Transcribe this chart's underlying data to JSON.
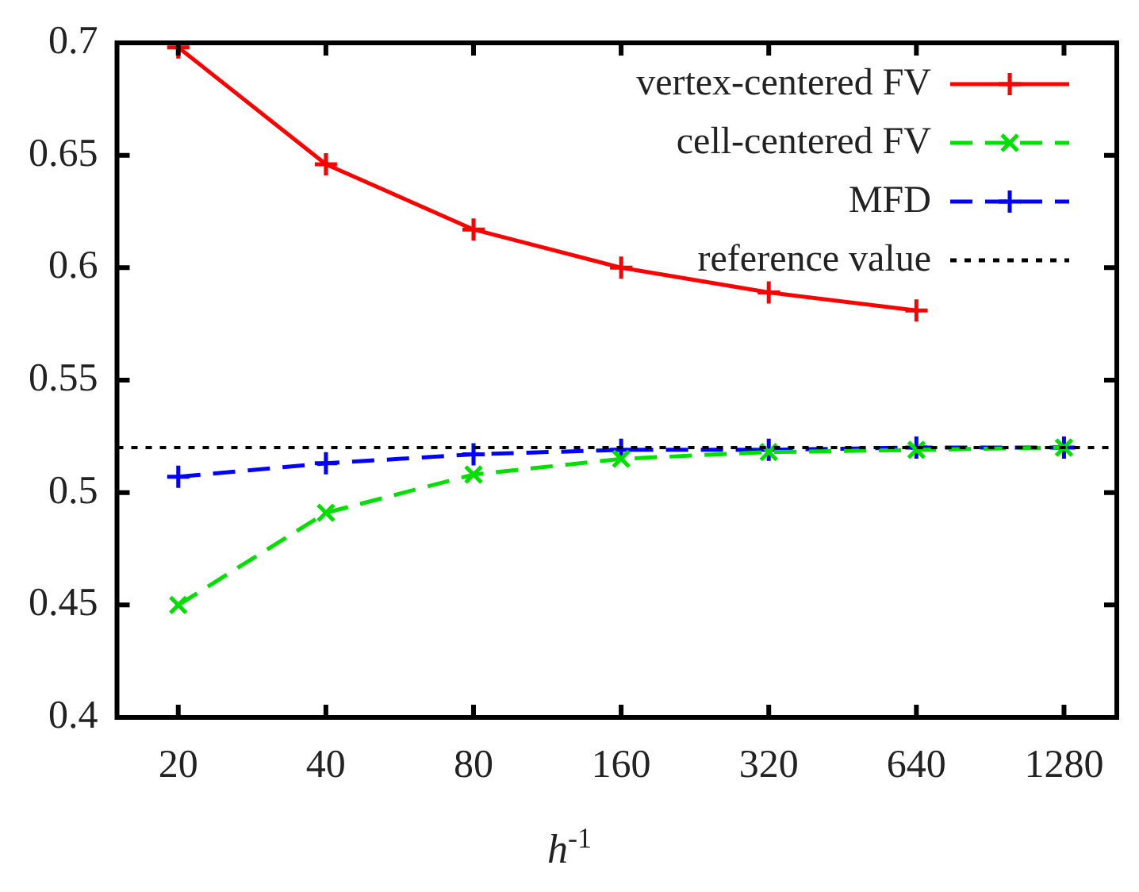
{
  "chart_data": {
    "type": "line",
    "xlabel": "h$^{-1}$",
    "log": "x",
    "xlim": [
      15,
      1640
    ],
    "xticks": [
      20,
      40,
      80,
      160,
      320,
      640,
      1280
    ],
    "ylim": [
      0.4,
      0.7
    ],
    "yticks": [
      0.4,
      0.45,
      0.5,
      0.55,
      0.6,
      0.65,
      0.7
    ],
    "grid": false,
    "legend": "top right",
    "series": [
      {
        "name": "vertex-centered FV",
        "color": "#ff0000",
        "marker": "cross",
        "line_style": "solid",
        "x": [
          20,
          40,
          80,
          160,
          320,
          640
        ],
        "values": [
          0.698,
          0.646,
          0.617,
          0.6,
          0.589,
          0.581
        ]
      },
      {
        "name": "cell-centered FV",
        "color": "#00e000",
        "marker": "crossRot",
        "line_style": "dashed",
        "x": [
          20,
          40,
          80,
          160,
          320,
          640,
          1280
        ],
        "values": [
          0.45,
          0.491,
          0.508,
          0.515,
          0.518,
          0.519,
          0.52
        ]
      },
      {
        "name": "MFD",
        "color": "#0000ff",
        "marker": "cross",
        "line_style": "dashed",
        "x": [
          20,
          40,
          80,
          160,
          320,
          640,
          1280
        ],
        "values": [
          0.507,
          0.513,
          0.517,
          0.519,
          0.519,
          0.52,
          0.52
        ]
      }
    ],
    "ref_lines": [
      {
        "axis": "y",
        "value": 0.52,
        "label": "reference value",
        "color": "#000000",
        "line_style": "dotted"
      }
    ]
  }
}
